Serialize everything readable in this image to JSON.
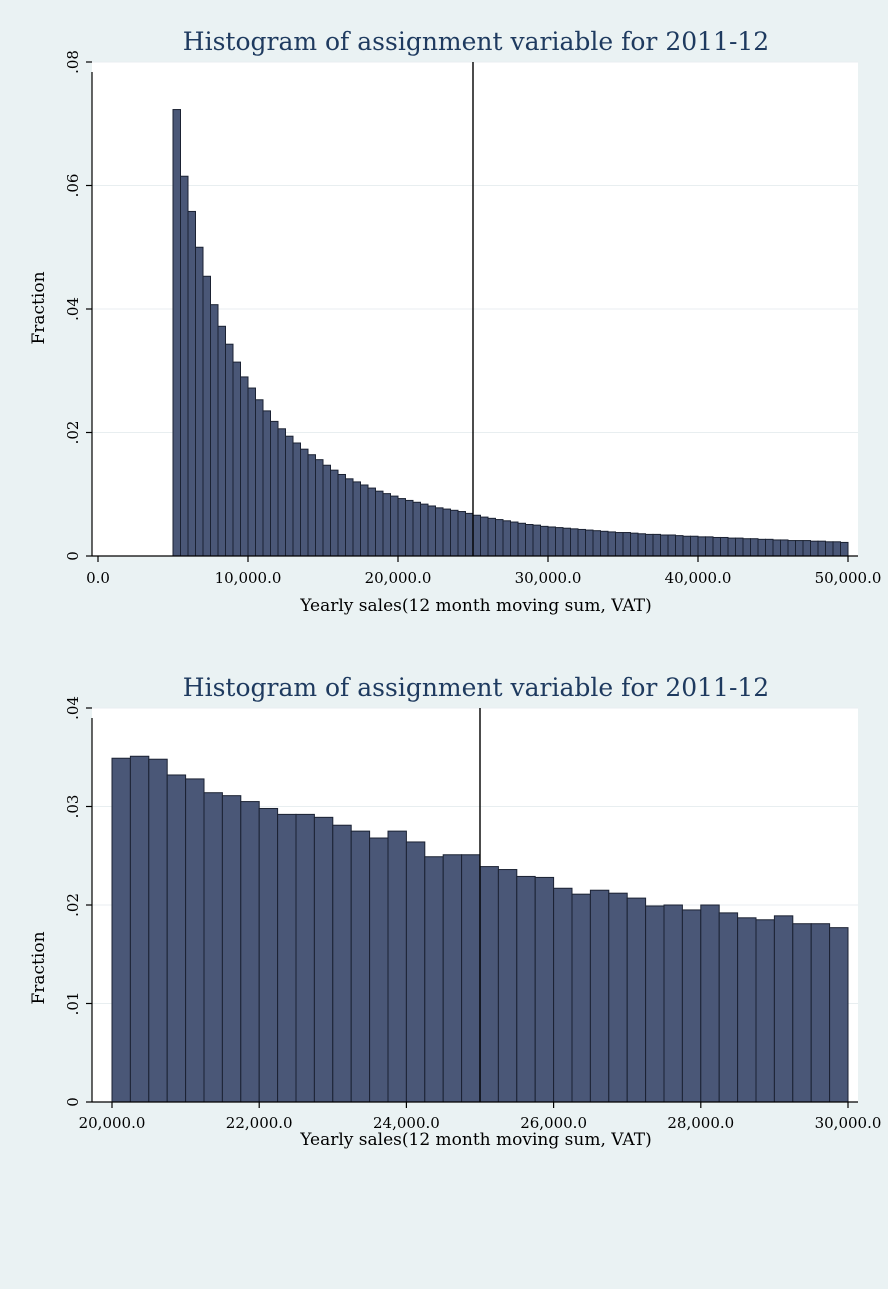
{
  "chart_data": [
    {
      "type": "bar",
      "title": "Histogram of assignment variable for 2011-12",
      "xlabel": "Yearly sales(12 month moving sum, VAT)",
      "ylabel": "Fraction",
      "xlim": [
        0,
        50000
      ],
      "ylim": [
        0,
        0.08
      ],
      "xticks": [
        0,
        10000,
        20000,
        30000,
        40000,
        50000
      ],
      "xtick_labels": [
        "0.0",
        "10,000.0",
        "20,000.0",
        "30,000.0",
        "40,000.0",
        "50,000.0"
      ],
      "yticks": [
        0,
        0.02,
        0.04,
        0.06,
        0.08
      ],
      "ytick_labels": [
        "0",
        ".02",
        ".04",
        ".06",
        ".08"
      ],
      "grid": true,
      "ref_line_x": 25000,
      "bin_start": 5000,
      "bin_width": 500,
      "values": [
        0.0723,
        0.0615,
        0.0558,
        0.05,
        0.0453,
        0.0407,
        0.0372,
        0.0343,
        0.0314,
        0.029,
        0.0272,
        0.0253,
        0.0235,
        0.0218,
        0.0206,
        0.0194,
        0.0183,
        0.0173,
        0.0164,
        0.0156,
        0.0147,
        0.0139,
        0.0132,
        0.0125,
        0.012,
        0.0115,
        0.011,
        0.0105,
        0.0101,
        0.0097,
        0.0093,
        0.009,
        0.0087,
        0.0084,
        0.0081,
        0.0078,
        0.0076,
        0.0074,
        0.0072,
        0.0069,
        0.0066,
        0.0063,
        0.0061,
        0.0059,
        0.0057,
        0.0055,
        0.0053,
        0.0051,
        0.005,
        0.0048,
        0.0047,
        0.0046,
        0.0045,
        0.0044,
        0.0043,
        0.0042,
        0.0041,
        0.004,
        0.0039,
        0.0038,
        0.0038,
        0.0037,
        0.0036,
        0.0035,
        0.0035,
        0.0034,
        0.0034,
        0.0033,
        0.0032,
        0.0032,
        0.0031,
        0.0031,
        0.003,
        0.003,
        0.0029,
        0.0029,
        0.0028,
        0.0028,
        0.0027,
        0.0027,
        0.0026,
        0.0026,
        0.0025,
        0.0025,
        0.0025,
        0.0024,
        0.0024,
        0.0023,
        0.0023,
        0.0022
      ]
    },
    {
      "type": "bar",
      "title": "Histogram of assignment variable for 2011-12",
      "xlabel": "Yearly sales(12 month moving sum, VAT)",
      "ylabel": "Fraction",
      "xlim": [
        20000,
        30000
      ],
      "ylim": [
        0,
        0.04
      ],
      "xticks": [
        20000,
        22000,
        24000,
        26000,
        28000,
        30000
      ],
      "xtick_labels": [
        "20,000.0",
        "22,000.0",
        "24,000.0",
        "26,000.0",
        "28,000.0",
        "30,000.0"
      ],
      "yticks": [
        0,
        0.01,
        0.02,
        0.03,
        0.04
      ],
      "ytick_labels": [
        "0",
        ".01",
        ".02",
        ".03",
        ".04"
      ],
      "grid": true,
      "ref_line_x": 25000,
      "bin_start": 20000,
      "bin_width": 250,
      "values": [
        0.0349,
        0.0351,
        0.0348,
        0.0332,
        0.0328,
        0.0314,
        0.0311,
        0.0305,
        0.0298,
        0.0292,
        0.0292,
        0.0289,
        0.0281,
        0.0275,
        0.0268,
        0.0275,
        0.0264,
        0.0249,
        0.0251,
        0.0251,
        0.0239,
        0.0236,
        0.0229,
        0.0228,
        0.0217,
        0.0211,
        0.0215,
        0.0212,
        0.0207,
        0.0199,
        0.02,
        0.0195,
        0.02,
        0.0192,
        0.0187,
        0.0185,
        0.0189,
        0.0181,
        0.0181,
        0.0177
      ]
    }
  ]
}
